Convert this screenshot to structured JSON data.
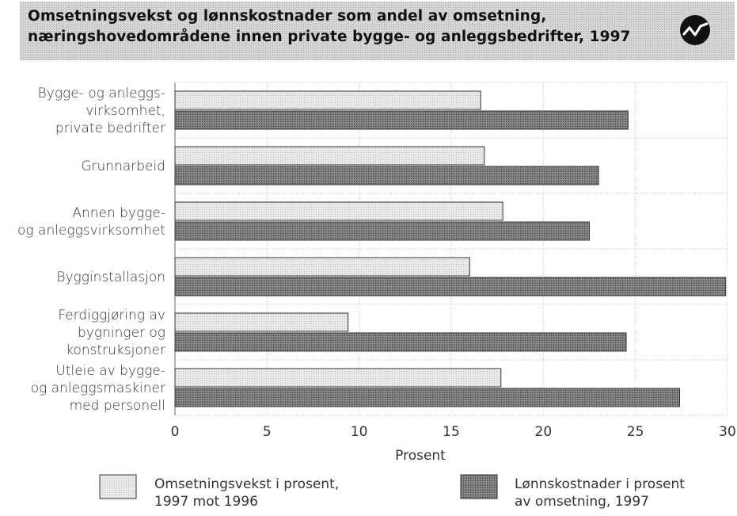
{
  "title": {
    "line1": "Omsetningsvekst og lønnskostnader som andel av omsetning,",
    "line2": "næringshovedområdene innen private bygge- og anleggsbedrifter, 1997"
  },
  "logo": {
    "icon": "ssb-logo-icon"
  },
  "chart_data": {
    "type": "bar",
    "orientation": "horizontal",
    "categories": [
      [
        "Bygge- og anleggs-",
        "virksomhet,",
        "private bedrifter"
      ],
      [
        "Grunnarbeid"
      ],
      [
        "Annen bygge-",
        "og anleggsvirksomhet"
      ],
      [
        "Bygginstallasjon"
      ],
      [
        "Ferdiggjøring av",
        "bygninger og",
        "konstruksjoner"
      ],
      [
        "Utleie av bygge-",
        "og anleggsmaskiner",
        "med personell"
      ]
    ],
    "series": [
      {
        "name": [
          "Omsetningsvekst i prosent,",
          "1997 mot 1996"
        ],
        "values": [
          16.6,
          16.8,
          17.8,
          16.0,
          9.4,
          17.7
        ],
        "color": "#e6e6e6"
      },
      {
        "name": [
          "Lønnskostnader i prosent",
          "av omsetning, 1997"
        ],
        "values": [
          24.6,
          23.0,
          22.5,
          29.9,
          24.5,
          27.4
        ],
        "color": "#7a7a7a"
      }
    ],
    "xlabel": "Prosent",
    "xlim": [
      0,
      30
    ],
    "ticks": [
      "0",
      "5",
      "10",
      "15",
      "20",
      "25",
      "30"
    ],
    "grid": true,
    "legend_position": "bottom"
  }
}
